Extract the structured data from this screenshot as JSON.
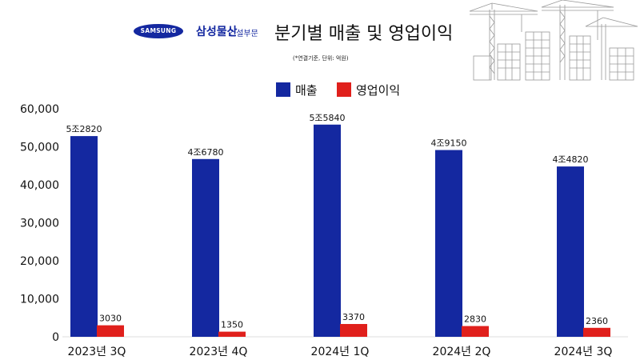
{
  "header": {
    "logo_text": "SAMSUNG",
    "brand_name": "삼성물산",
    "brand_division": "건설부문",
    "title": "분기별 매출 및 영업이익",
    "subtitle": "(*연결기준, 단위: 억원)"
  },
  "colors": {
    "revenue": "#1428a0",
    "operating_profit": "#e0201c",
    "brand": "#1428a0"
  },
  "chart_data": {
    "type": "bar",
    "title": "분기별 매출 및 영업이익",
    "categories": [
      "2023년 3Q",
      "2023년 4Q",
      "2024년 1Q",
      "2024년 2Q",
      "2024년 3Q"
    ],
    "series": [
      {
        "name": "매출",
        "values": [
          52820,
          46780,
          55840,
          49150,
          44820
        ],
        "labels": [
          "5조2820",
          "4조6780",
          "5조5840",
          "4조9150",
          "4조4820"
        ]
      },
      {
        "name": "영업이익",
        "values": [
          3030,
          1350,
          3370,
          2830,
          2360
        ],
        "labels": [
          "3030",
          "1350",
          "3370",
          "2830",
          "2360"
        ]
      }
    ],
    "yticks": [
      "0",
      "10,000",
      "20,000",
      "30,000",
      "40,000",
      "50,000",
      "60,000"
    ],
    "ylim": [
      0,
      60000
    ],
    "grid": false,
    "legend_position": "top-center"
  }
}
